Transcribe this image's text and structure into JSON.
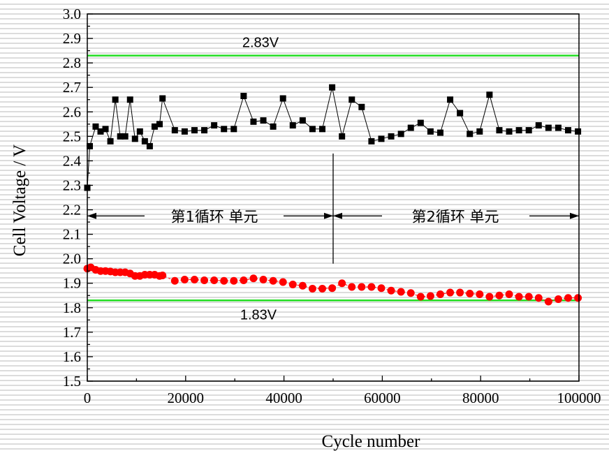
{
  "chart_data": {
    "type": "scatter",
    "xlabel": "Cycle number",
    "ylabel": "Cell Voltage / V",
    "xlim": [
      0,
      100000
    ],
    "ylim": [
      1.5,
      3.0
    ],
    "x_ticks": [
      "0",
      "20000",
      "40000",
      "60000",
      "80000",
      "100000"
    ],
    "y_ticks": [
      "1.5",
      "1.6",
      "1.7",
      "1.8",
      "1.9",
      "2.0",
      "2.1",
      "2.2",
      "2.3",
      "2.4",
      "2.5",
      "2.6",
      "2.7",
      "2.8",
      "2.9",
      "3.0"
    ],
    "grid": false,
    "colors": {
      "upper": "#000000",
      "lower": "#ff0000",
      "reference": "#22dd22",
      "upper_line": "#000000",
      "lower_line": "#ff0000"
    },
    "reference_lines": [
      {
        "y": 2.83,
        "label": "2.83V"
      },
      {
        "y": 1.83,
        "label": "1.83V"
      }
    ],
    "annotations": {
      "divider_x": 50000,
      "divider_y_range": [
        1.98,
        2.43
      ],
      "arrow_y": 2.175,
      "cycle1_label": "第1循环  单元",
      "cycle2_label": "第2循环  单元"
    },
    "series": [
      {
        "marker": "square",
        "color": "#000000",
        "x": [
          0,
          500,
          1700,
          2700,
          3700,
          4700,
          5700,
          6700,
          7700,
          8700,
          9700,
          10700,
          11700,
          12700,
          13700,
          14700,
          15300,
          17800,
          19800,
          21800,
          23800,
          25800,
          27800,
          29800,
          31800,
          33800,
          35800,
          37800,
          39800,
          41800,
          43800,
          45800,
          47800,
          49800,
          51800,
          53800,
          55800,
          57800,
          59800,
          61800,
          63800,
          65800,
          67800,
          69800,
          71800,
          73800,
          75800,
          77800,
          79800,
          81800,
          83800,
          85800,
          87800,
          89800,
          91800,
          93800,
          95800,
          97800,
          99800
        ],
        "y": [
          2.29,
          2.46,
          2.54,
          2.52,
          2.53,
          2.48,
          2.65,
          2.5,
          2.5,
          2.65,
          2.49,
          2.52,
          2.48,
          2.46,
          2.54,
          2.55,
          2.655,
          2.525,
          2.52,
          2.525,
          2.525,
          2.545,
          2.53,
          2.53,
          2.665,
          2.56,
          2.565,
          2.54,
          2.655,
          2.545,
          2.565,
          2.53,
          2.53,
          2.7,
          2.5,
          2.65,
          2.62,
          2.48,
          2.49,
          2.5,
          2.51,
          2.535,
          2.555,
          2.52,
          2.515,
          2.65,
          2.595,
          2.51,
          2.52,
          2.67,
          2.525,
          2.52,
          2.525,
          2.525,
          2.545,
          2.535,
          2.535,
          2.525,
          2.52
        ]
      },
      {
        "marker": "circle",
        "color": "#ff0000",
        "x": [
          0,
          700,
          1700,
          2700,
          3700,
          4700,
          5700,
          6700,
          7700,
          8700,
          9700,
          10700,
          11700,
          12700,
          13700,
          14700,
          15300,
          17800,
          19800,
          21800,
          23800,
          25800,
          27800,
          29800,
          31800,
          33800,
          35800,
          37800,
          39800,
          41800,
          43800,
          45800,
          47800,
          49800,
          51800,
          53800,
          55800,
          57800,
          59800,
          61800,
          63800,
          65800,
          67800,
          69800,
          71800,
          73800,
          75800,
          77800,
          79800,
          81800,
          83800,
          85800,
          87800,
          89800,
          91800,
          93800,
          95800,
          97800,
          99800
        ],
        "y": [
          1.96,
          1.965,
          1.955,
          1.95,
          1.95,
          1.948,
          1.945,
          1.945,
          1.945,
          1.94,
          1.93,
          1.93,
          1.935,
          1.935,
          1.935,
          1.93,
          1.932,
          1.91,
          1.915,
          1.915,
          1.912,
          1.912,
          1.91,
          1.91,
          1.912,
          1.92,
          1.915,
          1.91,
          1.905,
          1.895,
          1.89,
          1.878,
          1.878,
          1.88,
          1.9,
          1.885,
          1.885,
          1.885,
          1.88,
          1.87,
          1.865,
          1.86,
          1.845,
          1.848,
          1.855,
          1.862,
          1.862,
          1.858,
          1.855,
          1.845,
          1.85,
          1.855,
          1.845,
          1.845,
          1.84,
          1.825,
          1.835,
          1.84,
          1.84
        ]
      }
    ]
  }
}
